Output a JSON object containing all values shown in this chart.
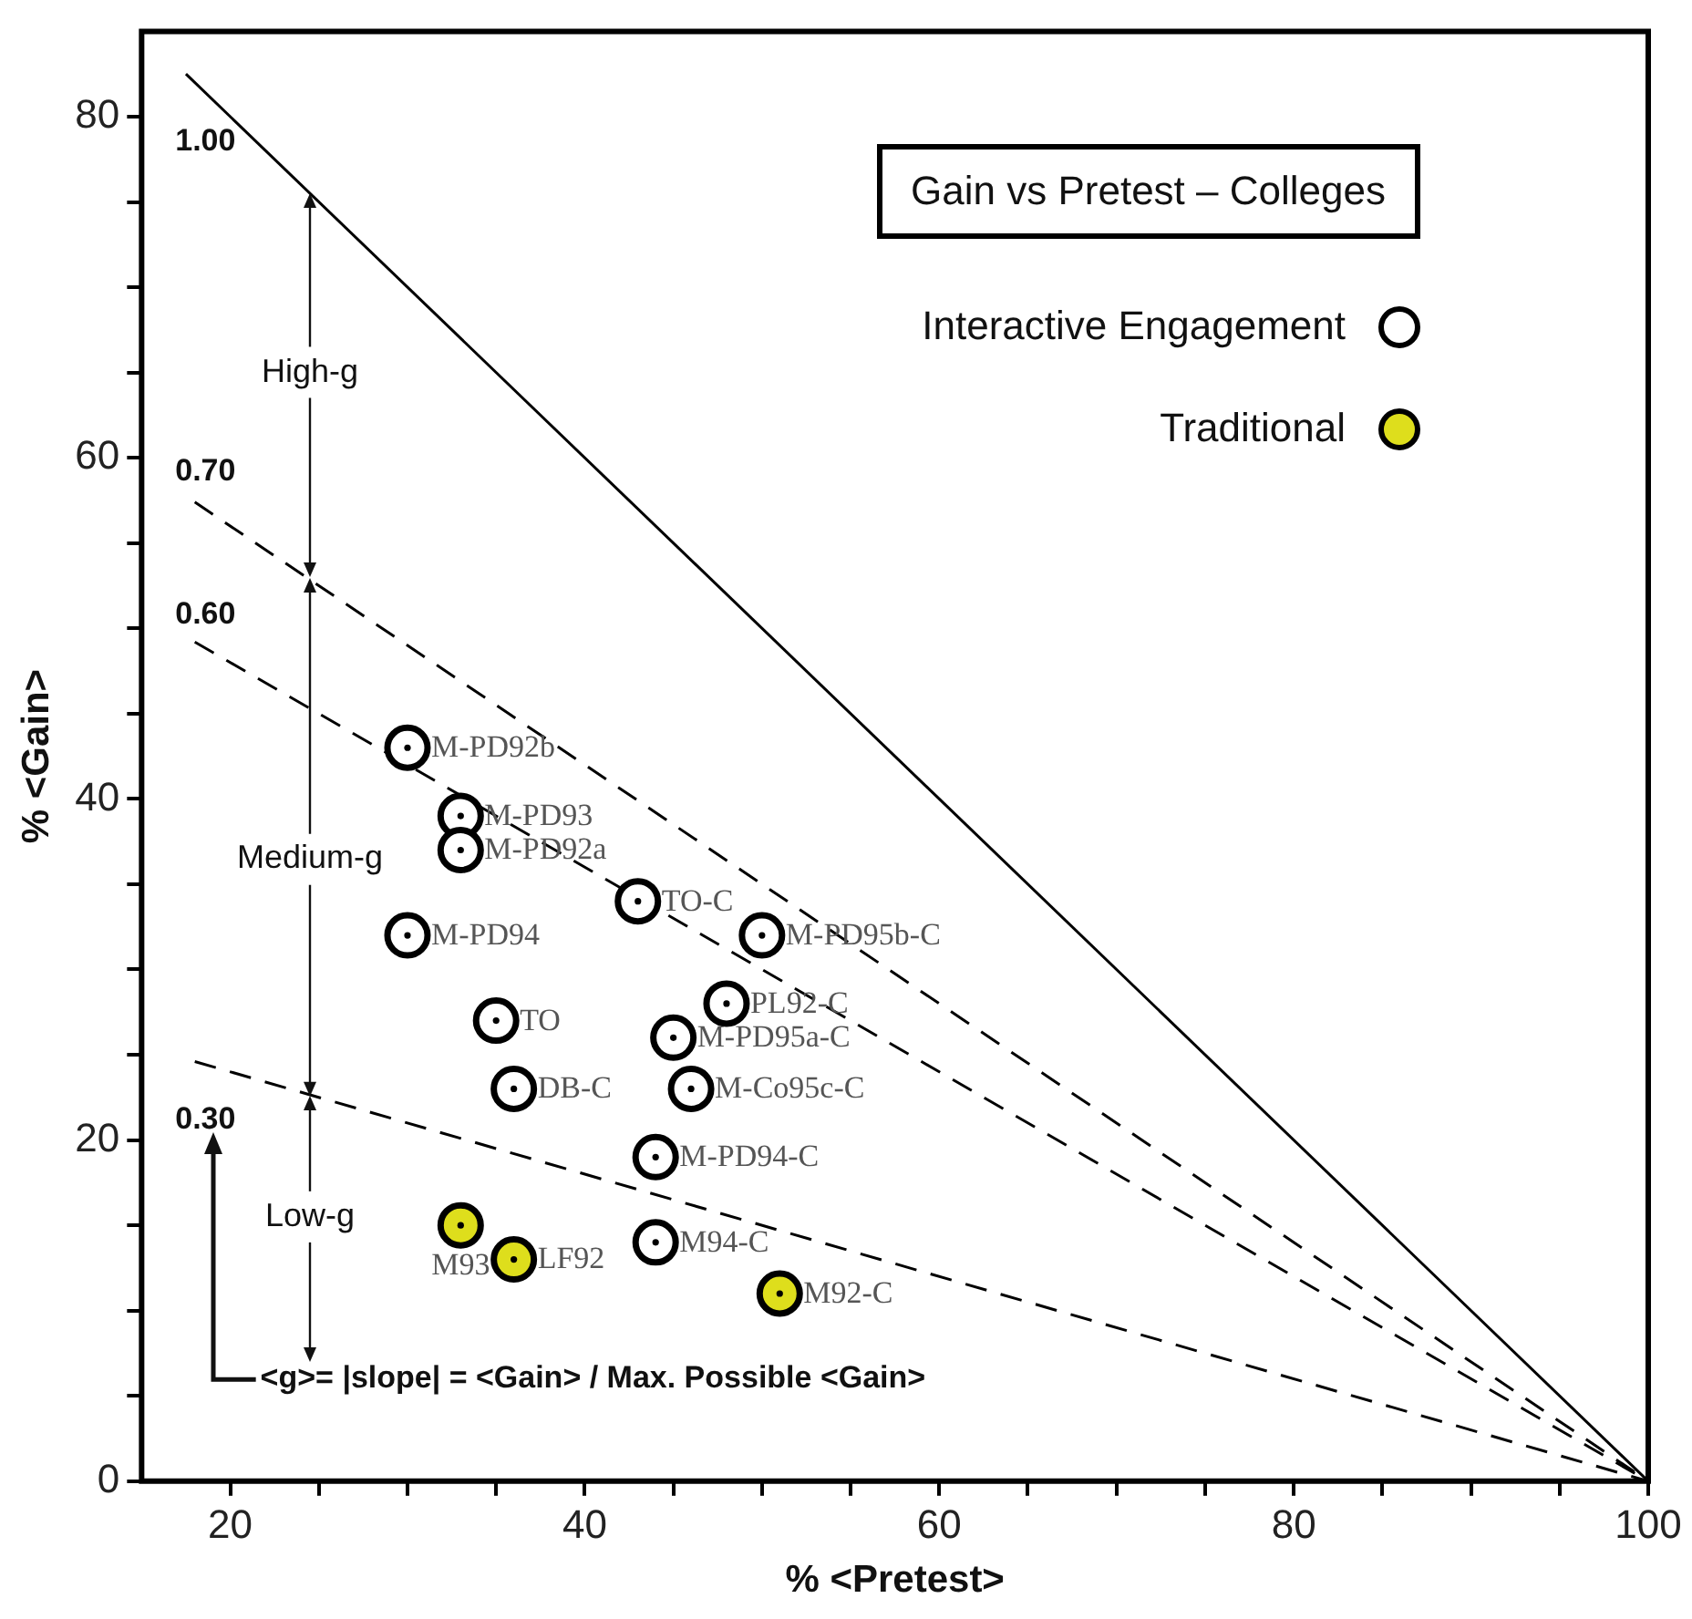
{
  "chart_data": {
    "type": "scatter",
    "legend_title": "Gain vs Pretest – Colleges",
    "xlabel": "% <Pretest>",
    "ylabel": "% <Gain>",
    "xlim": [
      15,
      100
    ],
    "ylim": [
      0,
      85
    ],
    "xticks": [
      20,
      {
        "value": 25,
        "label": null
      },
      {
        "value": 30,
        "label": null
      },
      {
        "value": 35,
        "label": null
      },
      40,
      {
        "value": 45,
        "label": null
      },
      {
        "value": 50,
        "label": null
      },
      {
        "value": 55,
        "label": null
      },
      60,
      {
        "value": 65,
        "label": null
      },
      {
        "value": 70,
        "label": null
      },
      {
        "value": 75,
        "label": null
      },
      80,
      {
        "value": 85,
        "label": null
      },
      {
        "value": 90,
        "label": null
      },
      {
        "value": 95,
        "label": null
      },
      100
    ],
    "yticks": [
      0,
      {
        "value": 5,
        "label": null
      },
      {
        "value": 10,
        "label": null
      },
      {
        "value": 15,
        "label": null
      },
      20,
      {
        "value": 25,
        "label": null
      },
      {
        "value": 30,
        "label": null
      },
      {
        "value": 35,
        "label": null
      },
      40,
      {
        "value": 45,
        "label": null
      },
      {
        "value": 50,
        "label": null
      },
      {
        "value": 55,
        "label": null
      },
      60,
      {
        "value": 65,
        "label": null
      },
      {
        "value": 70,
        "label": null
      },
      {
        "value": 75,
        "label": null
      },
      80
    ],
    "grid": false,
    "legend": "top right",
    "marker": "circle",
    "series": [
      {
        "name": "Interactive Engagement",
        "color": "#ffffff",
        "x": [
          30,
          33,
          33,
          30,
          43,
          50,
          48,
          45,
          35,
          36,
          46,
          44,
          44
        ],
        "values": [
          43,
          39,
          37,
          32,
          34,
          32,
          28,
          26,
          27,
          23,
          23,
          19,
          14
        ]
      },
      {
        "name": "Traditional",
        "color": "#dede1c",
        "x": [
          33,
          36,
          51
        ],
        "values": [
          15,
          13,
          11
        ]
      },
      {
        "type": "line",
        "marker": "none",
        "color": "#000000",
        "line_style": "solid",
        "x": [
          17.5,
          100
        ],
        "values": [
          82.5,
          0
        ]
      },
      {
        "type": "line",
        "marker": "none",
        "color": "#000000",
        "line_style": "dashed",
        "x": [
          18,
          100
        ],
        "values": [
          57.4,
          0
        ]
      },
      {
        "type": "line",
        "marker": "none",
        "color": "#000000",
        "line_style": "dashed",
        "x": [
          18,
          100
        ],
        "values": [
          49.2,
          0
        ]
      },
      {
        "type": "line",
        "marker": "none",
        "color": "#000000",
        "line_style": "dashed",
        "x": [
          18,
          100
        ],
        "values": [
          24.6,
          0
        ]
      }
    ],
    "annotations": [
      {
        "text": "M-PD92b",
        "x": 30,
        "y": 43
      },
      {
        "text": "M-PD93",
        "x": 33,
        "y": 39
      },
      {
        "text": "M-PD92a",
        "x": 33,
        "y": 37
      },
      {
        "text": "M-PD94",
        "x": 30,
        "y": 32
      },
      {
        "text": "TO-C",
        "x": 43,
        "y": 34
      },
      {
        "text": "M-PD95b-C",
        "x": 50,
        "y": 32
      },
      {
        "text": "PL92-C",
        "x": 48,
        "y": 28
      },
      {
        "text": "M-PD95a-C",
        "x": 45,
        "y": 26
      },
      {
        "text": "TO",
        "x": 35,
        "y": 27
      },
      {
        "text": "DB-C",
        "x": 36,
        "y": 23
      },
      {
        "text": "M-Co95c-C",
        "x": 46,
        "y": 23
      },
      {
        "text": "M-PD94-C",
        "x": 44,
        "y": 19
      },
      {
        "text": "M94-C",
        "x": 44,
        "y": 14
      },
      {
        "text": "M93",
        "x": 33,
        "y": 15
      },
      {
        "text": "LF92",
        "x": 36,
        "y": 13
      },
      {
        "text": "M92-C",
        "x": 51,
        "y": 11
      },
      "1.00",
      "0.70",
      "0.60",
      "0.30",
      {
        "text": "High-g",
        "x": 24.5,
        "y": 75.5
      },
      {
        "text": "Medium-g",
        "x": 24.5,
        "y": 52.9
      },
      "Low-g",
      "<g>= |slope| = <Gain> / Max. Possible <Gain>"
    ]
  }
}
